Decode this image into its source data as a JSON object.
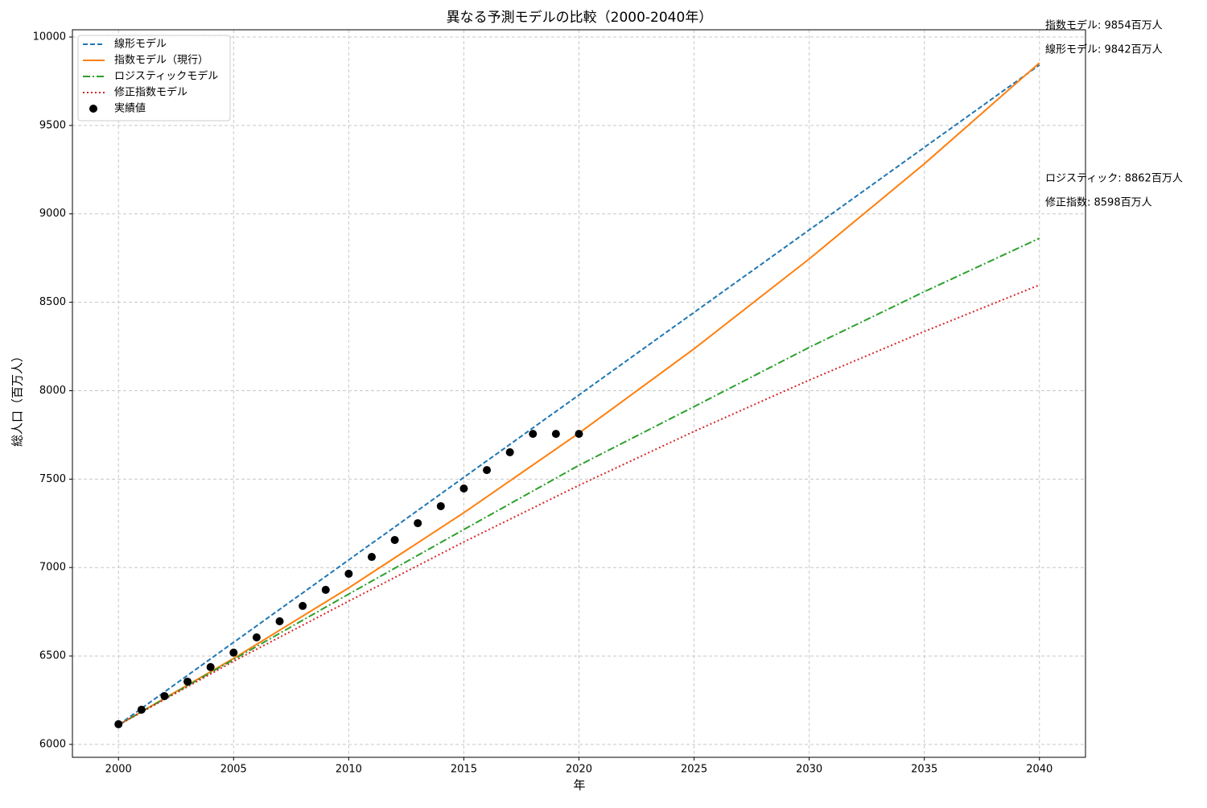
{
  "chart_data": {
    "type": "line",
    "title": "異なる予測モデルの比較（2000-2040年）",
    "xlabel": "年",
    "ylabel": "総人口（百万人）",
    "x": [
      2000,
      2005,
      2010,
      2015,
      2020,
      2025,
      2030,
      2035,
      2040
    ],
    "series": [
      {
        "name": "線形モデル",
        "color": "#1f77b4",
        "linestyle": "dashed",
        "values": [
          6110,
          6577,
          7043,
          7510,
          7976,
          8443,
          8909,
          9376,
          9842
        ]
      },
      {
        "name": "指数モデル（現行）",
        "color": "#ff7f0e",
        "linestyle": "solid",
        "values": [
          6110,
          6486,
          6885,
          7310,
          7760,
          8237,
          8745,
          9283,
          9854
        ]
      },
      {
        "name": "ロジスティックモデル",
        "color": "#2ca02c",
        "linestyle": "dashdot",
        "values": [
          6110,
          6480,
          6850,
          7215,
          7578,
          7910,
          8245,
          8560,
          8862
        ]
      },
      {
        "name": "修正指数モデル",
        "color": "#d62728",
        "linestyle": "dotted",
        "values": [
          6110,
          6470,
          6810,
          7145,
          7465,
          7770,
          8060,
          8335,
          8598
        ]
      },
      {
        "name": "実績値",
        "color": "#000000",
        "linestyle": "none",
        "marker": "circle",
        "x": [
          2000,
          2001,
          2002,
          2003,
          2004,
          2005,
          2006,
          2007,
          2008,
          2009,
          2010,
          2011,
          2012,
          2013,
          2014,
          2015,
          2016,
          2017,
          2018,
          2019,
          2020
        ],
        "values": [
          6114,
          6196,
          6273,
          6355,
          6437,
          6519,
          6605,
          6696,
          6783,
          6874,
          6965,
          7060,
          7156,
          7251,
          7347,
          7447,
          7551,
          7652,
          7756,
          7756,
          7756
        ]
      }
    ],
    "annotations": [
      "指数モデル: 9854百万人",
      "線形モデル: 9842百万人",
      "ロジスティック: 8862百万人",
      "修正指数: 8598百万人"
    ],
    "xlim": [
      1998,
      2042
    ],
    "ylim": [
      5927,
      10041
    ],
    "xticks": [
      2000,
      2005,
      2010,
      2015,
      2020,
      2025,
      2030,
      2035,
      2040
    ],
    "yticks": [
      6000,
      6500,
      7000,
      7500,
      8000,
      8500,
      9000,
      9500,
      10000
    ],
    "grid": true,
    "legend": "upper left"
  }
}
